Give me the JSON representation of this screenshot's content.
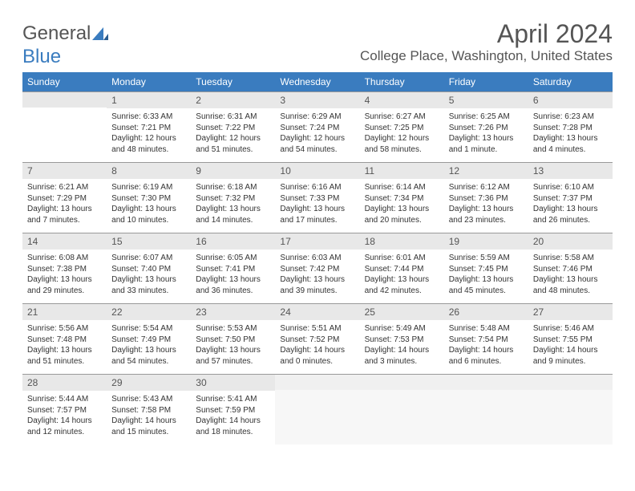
{
  "logo": {
    "text_part1": "General",
    "text_part2": "Blue"
  },
  "title": "April 2024",
  "location": "College Place, Washington, United States",
  "colors": {
    "header_bg": "#3a7cbf",
    "header_text": "#ffffff",
    "daynum_bg": "#e8e8e8",
    "text": "#333333",
    "title_text": "#555555"
  },
  "weekdays": [
    "Sunday",
    "Monday",
    "Tuesday",
    "Wednesday",
    "Thursday",
    "Friday",
    "Saturday"
  ],
  "weeks": [
    [
      {
        "day": "",
        "sunrise": "",
        "sunset": "",
        "daylight": ""
      },
      {
        "day": "1",
        "sunrise": "Sunrise: 6:33 AM",
        "sunset": "Sunset: 7:21 PM",
        "daylight": "Daylight: 12 hours and 48 minutes."
      },
      {
        "day": "2",
        "sunrise": "Sunrise: 6:31 AM",
        "sunset": "Sunset: 7:22 PM",
        "daylight": "Daylight: 12 hours and 51 minutes."
      },
      {
        "day": "3",
        "sunrise": "Sunrise: 6:29 AM",
        "sunset": "Sunset: 7:24 PM",
        "daylight": "Daylight: 12 hours and 54 minutes."
      },
      {
        "day": "4",
        "sunrise": "Sunrise: 6:27 AM",
        "sunset": "Sunset: 7:25 PM",
        "daylight": "Daylight: 12 hours and 58 minutes."
      },
      {
        "day": "5",
        "sunrise": "Sunrise: 6:25 AM",
        "sunset": "Sunset: 7:26 PM",
        "daylight": "Daylight: 13 hours and 1 minute."
      },
      {
        "day": "6",
        "sunrise": "Sunrise: 6:23 AM",
        "sunset": "Sunset: 7:28 PM",
        "daylight": "Daylight: 13 hours and 4 minutes."
      }
    ],
    [
      {
        "day": "7",
        "sunrise": "Sunrise: 6:21 AM",
        "sunset": "Sunset: 7:29 PM",
        "daylight": "Daylight: 13 hours and 7 minutes."
      },
      {
        "day": "8",
        "sunrise": "Sunrise: 6:19 AM",
        "sunset": "Sunset: 7:30 PM",
        "daylight": "Daylight: 13 hours and 10 minutes."
      },
      {
        "day": "9",
        "sunrise": "Sunrise: 6:18 AM",
        "sunset": "Sunset: 7:32 PM",
        "daylight": "Daylight: 13 hours and 14 minutes."
      },
      {
        "day": "10",
        "sunrise": "Sunrise: 6:16 AM",
        "sunset": "Sunset: 7:33 PM",
        "daylight": "Daylight: 13 hours and 17 minutes."
      },
      {
        "day": "11",
        "sunrise": "Sunrise: 6:14 AM",
        "sunset": "Sunset: 7:34 PM",
        "daylight": "Daylight: 13 hours and 20 minutes."
      },
      {
        "day": "12",
        "sunrise": "Sunrise: 6:12 AM",
        "sunset": "Sunset: 7:36 PM",
        "daylight": "Daylight: 13 hours and 23 minutes."
      },
      {
        "day": "13",
        "sunrise": "Sunrise: 6:10 AM",
        "sunset": "Sunset: 7:37 PM",
        "daylight": "Daylight: 13 hours and 26 minutes."
      }
    ],
    [
      {
        "day": "14",
        "sunrise": "Sunrise: 6:08 AM",
        "sunset": "Sunset: 7:38 PM",
        "daylight": "Daylight: 13 hours and 29 minutes."
      },
      {
        "day": "15",
        "sunrise": "Sunrise: 6:07 AM",
        "sunset": "Sunset: 7:40 PM",
        "daylight": "Daylight: 13 hours and 33 minutes."
      },
      {
        "day": "16",
        "sunrise": "Sunrise: 6:05 AM",
        "sunset": "Sunset: 7:41 PM",
        "daylight": "Daylight: 13 hours and 36 minutes."
      },
      {
        "day": "17",
        "sunrise": "Sunrise: 6:03 AM",
        "sunset": "Sunset: 7:42 PM",
        "daylight": "Daylight: 13 hours and 39 minutes."
      },
      {
        "day": "18",
        "sunrise": "Sunrise: 6:01 AM",
        "sunset": "Sunset: 7:44 PM",
        "daylight": "Daylight: 13 hours and 42 minutes."
      },
      {
        "day": "19",
        "sunrise": "Sunrise: 5:59 AM",
        "sunset": "Sunset: 7:45 PM",
        "daylight": "Daylight: 13 hours and 45 minutes."
      },
      {
        "day": "20",
        "sunrise": "Sunrise: 5:58 AM",
        "sunset": "Sunset: 7:46 PM",
        "daylight": "Daylight: 13 hours and 48 minutes."
      }
    ],
    [
      {
        "day": "21",
        "sunrise": "Sunrise: 5:56 AM",
        "sunset": "Sunset: 7:48 PM",
        "daylight": "Daylight: 13 hours and 51 minutes."
      },
      {
        "day": "22",
        "sunrise": "Sunrise: 5:54 AM",
        "sunset": "Sunset: 7:49 PM",
        "daylight": "Daylight: 13 hours and 54 minutes."
      },
      {
        "day": "23",
        "sunrise": "Sunrise: 5:53 AM",
        "sunset": "Sunset: 7:50 PM",
        "daylight": "Daylight: 13 hours and 57 minutes."
      },
      {
        "day": "24",
        "sunrise": "Sunrise: 5:51 AM",
        "sunset": "Sunset: 7:52 PM",
        "daylight": "Daylight: 14 hours and 0 minutes."
      },
      {
        "day": "25",
        "sunrise": "Sunrise: 5:49 AM",
        "sunset": "Sunset: 7:53 PM",
        "daylight": "Daylight: 14 hours and 3 minutes."
      },
      {
        "day": "26",
        "sunrise": "Sunrise: 5:48 AM",
        "sunset": "Sunset: 7:54 PM",
        "daylight": "Daylight: 14 hours and 6 minutes."
      },
      {
        "day": "27",
        "sunrise": "Sunrise: 5:46 AM",
        "sunset": "Sunset: 7:55 PM",
        "daylight": "Daylight: 14 hours and 9 minutes."
      }
    ],
    [
      {
        "day": "28",
        "sunrise": "Sunrise: 5:44 AM",
        "sunset": "Sunset: 7:57 PM",
        "daylight": "Daylight: 14 hours and 12 minutes."
      },
      {
        "day": "29",
        "sunrise": "Sunrise: 5:43 AM",
        "sunset": "Sunset: 7:58 PM",
        "daylight": "Daylight: 14 hours and 15 minutes."
      },
      {
        "day": "30",
        "sunrise": "Sunrise: 5:41 AM",
        "sunset": "Sunset: 7:59 PM",
        "daylight": "Daylight: 14 hours and 18 minutes."
      },
      {
        "day": "",
        "sunrise": "",
        "sunset": "",
        "daylight": "",
        "trailing": true
      },
      {
        "day": "",
        "sunrise": "",
        "sunset": "",
        "daylight": "",
        "trailing": true
      },
      {
        "day": "",
        "sunrise": "",
        "sunset": "",
        "daylight": "",
        "trailing": true
      },
      {
        "day": "",
        "sunrise": "",
        "sunset": "",
        "daylight": "",
        "trailing": true
      }
    ]
  ]
}
